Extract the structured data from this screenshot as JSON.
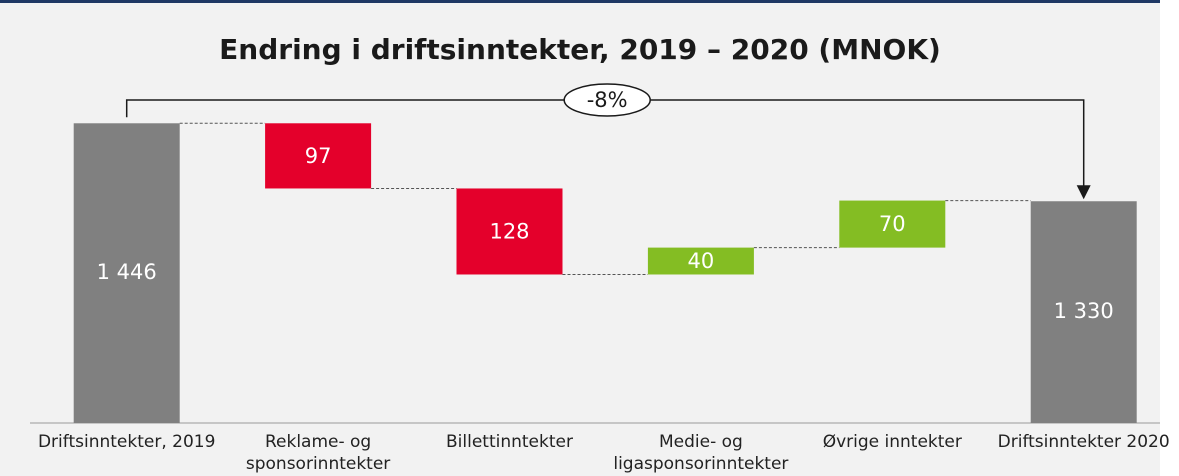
{
  "chart_data": {
    "type": "waterfall",
    "title": "Endring i driftsinntekter, 2019 – 2020 (MNOK)",
    "annotation": "-8%",
    "categories": [
      "Driftsinntekter, 2019",
      "Reklame- og sponsorinntekter",
      "Billettinntekter",
      "Medie- og ligasponsorinntekter",
      "Øvrige inntekter",
      "Driftsinntekter 2020"
    ],
    "values": [
      1446,
      -97,
      -128,
      40,
      70,
      1330
    ],
    "value_labels": [
      "1 446",
      "97",
      "128",
      "40",
      "70",
      "1 330"
    ],
    "is_total": [
      true,
      false,
      false,
      false,
      false,
      true
    ],
    "total_color": "#808080",
    "increase_color": "#84bd23",
    "decrease_color": "#e4002b",
    "ylim": [
      1000,
      1500
    ]
  }
}
